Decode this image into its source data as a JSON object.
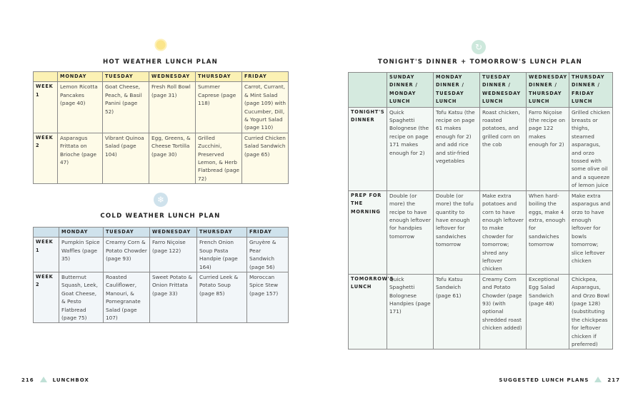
{
  "hot": {
    "icon": "sun-icon",
    "title": "HOT WEATHER LUNCH PLAN",
    "headers": [
      "",
      "MONDAY",
      "TUESDAY",
      "WEDNESDAY",
      "THURSDAY",
      "FRIDAY"
    ],
    "rows": [
      {
        "label": "WEEK 1",
        "cells": [
          "Lemon Ricotta Pancakes (page 40)",
          "Goat Cheese, Peach, & Basil Panini (page 52)",
          "Fresh Roll Bowl (page 31)",
          "Summer Caprese (page 118)",
          "Carrot, Currant, & Mint Salad (page 109) with Cucumber, Dill, & Yogurt Salad (page 110)"
        ]
      },
      {
        "label": "WEEK 2",
        "cells": [
          "Asparagus Frittata on Brioche (page 47)",
          "Vibrant Quinoa Salad (page 104)",
          "Egg, Greens, & Cheese Tortilla (page 30)",
          "Grilled Zucchini, Preserved Lemon, & Herb Flatbread (page 72)",
          "Curried Chicken Salad Sandwich (page 65)"
        ]
      }
    ]
  },
  "cold": {
    "icon": "snowflake-icon",
    "title": "COLD WEATHER LUNCH PLAN",
    "headers": [
      "",
      "MONDAY",
      "TUESDAY",
      "WEDNESDAY",
      "THURSDAY",
      "FRIDAY"
    ],
    "rows": [
      {
        "label": "WEEK 1",
        "cells": [
          "Pumpkin Spice Waffles (page 35)",
          "Creamy Corn & Potato Chowder (page 93)",
          "Farro Niçoise (page 122)",
          "French Onion Soup Pasta Handpie (page 164)",
          "Gruyère & Pear Sandwich (page 56)"
        ]
      },
      {
        "label": "WEEK 2",
        "cells": [
          "Butternut Squash, Leek, Goat Cheese, & Pesto Flatbread (page 75)",
          "Roasted Cauliflower, Manouri, & Pomegranate Salad (page 107)",
          "Sweet Potato & Onion Frittata (page 33)",
          "Curried Leek & Potato Soup (page 85)",
          "Moroccan Spice Stew (page 157)"
        ]
      }
    ]
  },
  "dinner": {
    "icon": "recycle-icon",
    "title": "TONIGHT'S DINNER + TOMORROW'S LUNCH PLAN",
    "headers": [
      "",
      "SUNDAY DINNER / MONDAY LUNCH",
      "MONDAY DINNER / TUESDAY LUNCH",
      "TUESDAY DINNER / WEDNESDAY LUNCH",
      "WEDNESDAY DINNER / THURSDAY LUNCH",
      "THURSDAY DINNER / FRIDAY LUNCH"
    ],
    "rows": [
      {
        "label": "TONIGHT'S DINNER",
        "cells": [
          "Quick Spaghetti Bolognese (the recipe on page 171 makes enough for 2)",
          "Tofu Katsu (the recipe on page 61 makes enough for 2) and add rice and stir-fried vegetables",
          "Roast chicken, roasted potatoes, and grilled corn on the cob",
          "Farro Niçoise (the recipe on page 122 makes enough for 2)",
          "Grilled chicken breasts or thighs, steamed asparagus, and orzo tossed with some olive oil and a squeeze of lemon juice"
        ]
      },
      {
        "label": "PREP FOR THE MORNING",
        "cells": [
          "Double (or more) the recipe to have enough leftover for handpies tomorrow",
          "Double (or more) the tofu quantity to have enough leftover for sandwiches tomorrow",
          "Make extra potatoes and corn to have enough leftover to make chowder for tomorrow; shred any leftover chicken",
          "When hard-boiling the eggs, make 4 extra, enough for sandwiches tomorrow",
          "Make extra asparagus and orzo to have enough leftover for bowls tomorrow; slice leftover chicken"
        ]
      },
      {
        "label": "TOMORROW'S LUNCH",
        "cells": [
          "Quick Spaghetti Bolognese Handpies (page 171)",
          "Tofu Katsu Sandwich (page 61)",
          "Creamy Corn and Potato Chowder (page 93) (with optional shredded roast chicken added)",
          "Exceptional Egg Salad Sandwich (page 48)",
          "Chickpea, Asparagus, and Orzo Bowl (page 128) (substituting the chickpeas for leftover chicken if preferred)"
        ]
      }
    ]
  },
  "footer": {
    "left_page": "216",
    "left_label": "LUNCHBOX",
    "right_label": "SUGGESTED LUNCH PLANS",
    "right_page": "217"
  },
  "colors": {
    "hot_header": "#fbf1b4",
    "cold_header": "#cfe2ec",
    "dinner_header": "#d5eadf",
    "accent_triangle": "#bfe0d6"
  }
}
